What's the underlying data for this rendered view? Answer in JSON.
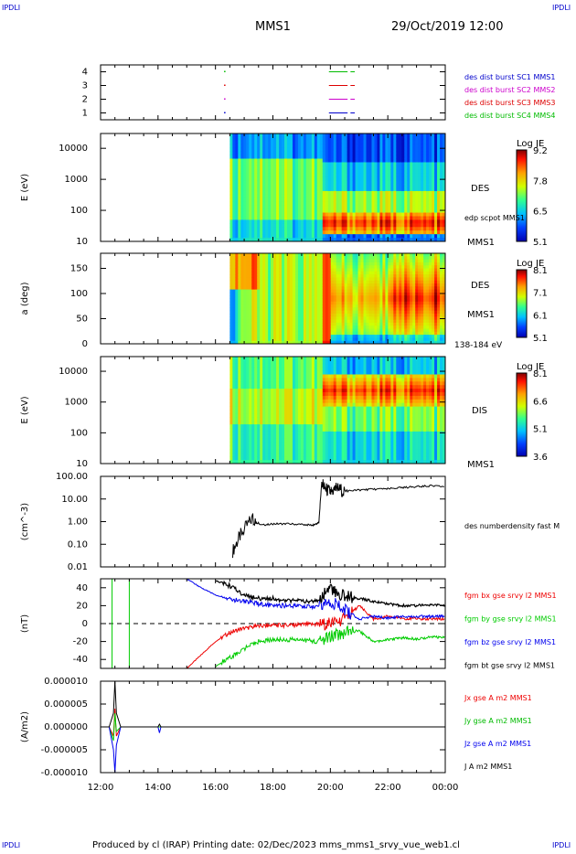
{
  "corner_label": "IPDLI",
  "header": {
    "spacecraft": "MMS1",
    "datetime": "29/Oct/2019 12:00"
  },
  "footer": {
    "text": "Produced by cl (IRAP)   Printing date: 02/Dec/2023   mms_mms1_srvy_vue_web1.cl"
  },
  "time_axis": {
    "ticks": [
      "12:00",
      "14:00",
      "16:00",
      "18:00",
      "20:00",
      "22:00",
      "00:00"
    ]
  },
  "colors": {
    "blue": "#0000ee",
    "magenta": "#dd00dd",
    "red": "#ee0000",
    "green": "#00cc00",
    "black": "#000000"
  },
  "panels": {
    "coverage": {
      "yticks": [
        "4",
        "3",
        "2",
        "1"
      ],
      "legend": [
        {
          "text": "des dist burst SC1 MMS1",
          "color": "#0000cc"
        },
        {
          "text": "des dist burst SC2 MMS2",
          "color": "#cc00cc"
        },
        {
          "text": "des dist burst SC3 MMS3",
          "color": "#dd0000"
        },
        {
          "text": "des dist burst SC4 MMS4",
          "color": "#00bb00"
        }
      ]
    },
    "des_energy": {
      "ylabel": "E (eV)",
      "yticks": [
        "10000",
        "1000",
        "100",
        "10"
      ],
      "instrument": "DES",
      "spacecraft": "MMS1",
      "overlay": "edp scpot MMS1",
      "colorbar": {
        "title": "Log JE",
        "ticks": [
          "9.2",
          "7.8",
          "6.5",
          "5.1"
        ]
      }
    },
    "des_pitch": {
      "ylabel": "a (deg)",
      "yticks": [
        "150",
        "100",
        "50",
        "0"
      ],
      "instrument": "DES",
      "spacecraft": "MMS1",
      "energy_range": "138-184 eV",
      "colorbar": {
        "title": "Log JE",
        "ticks": [
          "8.1",
          "7.1",
          "6.1",
          "5.1"
        ]
      }
    },
    "dis_energy": {
      "ylabel": "E (eV)",
      "yticks": [
        "10000",
        "1000",
        "100",
        "10"
      ],
      "instrument": "DIS",
      "spacecraft": "MMS1",
      "colorbar": {
        "title": "Log JE",
        "ticks": [
          "8.1",
          "6.6",
          "5.1",
          "3.6"
        ]
      }
    },
    "density": {
      "ylabel": "(cm^-3)",
      "yticks": [
        "100.00",
        "10.00",
        "1.00",
        "0.10",
        "0.01"
      ],
      "legend": "des numberdensity fast M"
    },
    "bfield": {
      "ylabel": "(nT)",
      "yticks": [
        "40",
        "20",
        "0",
        "-20",
        "-40"
      ],
      "legend": [
        {
          "text": "fgm bx gse srvy l2 MMS1",
          "color": "#ee0000"
        },
        {
          "text": "fgm by gse srvy l2 MMS1",
          "color": "#00cc00"
        },
        {
          "text": "fgm bz gse srvy l2 MMS1",
          "color": "#0000ee"
        },
        {
          "text": "fgm bt gse srvy l2 MMS1",
          "color": "#000000"
        }
      ]
    },
    "current": {
      "ylabel": "(A/m2)",
      "yticks": [
        "0.000010",
        "0.000005",
        "0.000000",
        "-0.000005",
        "-0.000010"
      ],
      "legend": [
        {
          "text": "Jx gse A m2 MMS1",
          "color": "#ee0000"
        },
        {
          "text": "Jy gse A m2 MMS1",
          "color": "#00bb00"
        },
        {
          "text": "Jz gse A m2 MMS1",
          "color": "#0000ee"
        },
        {
          "text": "J A m2 MMS1",
          "color": "#000000"
        }
      ]
    }
  },
  "chart_data": [
    {
      "type": "scatter",
      "x_unit": "UT hours",
      "y_unit": "spacecraft",
      "xlim": [
        12,
        24
      ],
      "ylim": [
        0.5,
        4.5
      ],
      "series": [
        {
          "name": "des dist burst SC4 MMS4",
          "y": 4,
          "segments": [
            [
              19.95,
              20.6
            ],
            [
              20.7,
              20.85
            ]
          ],
          "points": [
            16.3
          ]
        },
        {
          "name": "des dist burst SC3 MMS3",
          "y": 3,
          "segments": [
            [
              19.95,
              20.6
            ],
            [
              20.7,
              20.85
            ]
          ],
          "points": [
            16.3
          ]
        },
        {
          "name": "des dist burst SC2 MMS2",
          "y": 2,
          "segments": [
            [
              19.95,
              20.6
            ],
            [
              20.7,
              20.85
            ]
          ],
          "points": [
            16.3
          ]
        },
        {
          "name": "des dist burst SC1 MMS1",
          "y": 1,
          "segments": [
            [
              19.95,
              20.6
            ],
            [
              20.7,
              20.85
            ]
          ],
          "points": [
            16.3
          ]
        }
      ]
    },
    {
      "type": "heatmap",
      "name": "DES energy spectrogram",
      "y_scale": "log",
      "ylim": [
        10,
        30000
      ],
      "data_start_hour": 16.5,
      "boundary_hour": 19.7,
      "colorbar_range": [
        5.1,
        9.2
      ]
    },
    {
      "type": "heatmap",
      "name": "DES pitch angle",
      "ylim": [
        0,
        180
      ],
      "data_start_hour": 16.5,
      "boundary_hour": 19.7,
      "colorbar_range": [
        5.1,
        8.1
      ]
    },
    {
      "type": "heatmap",
      "name": "DIS energy spectrogram",
      "y_scale": "log",
      "ylim": [
        10,
        30000
      ],
      "data_start_hour": 16.5,
      "boundary_hour": 19.7,
      "colorbar_range": [
        3.6,
        8.1
      ]
    },
    {
      "type": "line",
      "y_scale": "log",
      "ylim": [
        0.01,
        100
      ],
      "x": [
        16.6,
        16.9,
        17.3,
        17.6,
        18.0,
        18.5,
        19.0,
        19.4,
        19.6,
        19.7,
        19.8,
        20.0,
        20.2,
        20.5,
        21.0,
        21.5,
        22.0,
        22.5,
        23.0,
        23.5,
        24.0
      ],
      "series": [
        {
          "name": "des numberdensity fast M",
          "values": [
            0.05,
            0.3,
            1.5,
            0.7,
            0.8,
            0.8,
            0.75,
            0.7,
            0.9,
            60,
            30,
            20,
            30,
            22,
            25,
            27,
            28,
            32,
            35,
            38,
            35
          ]
        }
      ]
    },
    {
      "type": "line",
      "ylim": [
        -50,
        50
      ],
      "x": [
        15.0,
        15.5,
        16.0,
        16.5,
        17.0,
        17.5,
        18.0,
        18.5,
        19.0,
        19.5,
        20.0,
        20.5,
        21.0,
        21.5,
        22.0,
        22.5,
        23.0,
        23.5,
        24.0
      ],
      "series": [
        {
          "name": "fgm bx gse srvy l2 MMS1",
          "values": [
            -50,
            -35,
            -20,
            -10,
            -5,
            -3,
            -2,
            -2,
            -1,
            -1,
            0,
            5,
            20,
            5,
            8,
            6,
            5,
            5,
            5
          ]
        },
        {
          "name": "fgm by gse srvy l2 MMS1",
          "values": [
            null,
            null,
            -48,
            -38,
            -28,
            -20,
            -18,
            -18,
            -18,
            -20,
            -15,
            -10,
            -8,
            -20,
            -18,
            -16,
            -17,
            -15,
            -16
          ]
        },
        {
          "name": "fgm bz gse srvy l2 MMS1",
          "values": [
            50,
            40,
            32,
            27,
            25,
            22,
            20,
            20,
            20,
            18,
            25,
            15,
            5,
            8,
            6,
            8,
            8,
            8,
            8
          ]
        },
        {
          "name": "fgm bt gse srvy l2 MMS1",
          "values": [
            null,
            null,
            48,
            42,
            32,
            28,
            28,
            26,
            25,
            25,
            40,
            30,
            28,
            25,
            22,
            20,
            20,
            21,
            20
          ]
        }
      ]
    },
    {
      "type": "line",
      "ylim": [
        -1e-05,
        1e-05
      ],
      "x": [
        12.0,
        12.3,
        12.45,
        12.5,
        12.55,
        12.7,
        13.0,
        14.0,
        14.05,
        14.1,
        16.0,
        18.0,
        20.0,
        22.0,
        24.0
      ],
      "series": [
        {
          "name": "Jx gse A m2 MMS1",
          "values": [
            0,
            0,
            -2e-06,
            4e-06,
            -2e-06,
            0,
            0,
            0,
            0,
            0,
            0,
            0,
            0,
            0,
            0
          ]
        },
        {
          "name": "Jy gse A m2 MMS1",
          "values": [
            0,
            0,
            -3e-06,
            3e-06,
            -1e-06,
            0,
            0,
            0,
            0,
            0,
            0,
            0,
            0,
            0,
            0
          ]
        },
        {
          "name": "Jz gse A m2 MMS1",
          "values": [
            0,
            0,
            -5e-06,
            -1e-05,
            -4e-06,
            0,
            0,
            0,
            -1.3e-06,
            0,
            0,
            0,
            0,
            0,
            0
          ]
        },
        {
          "name": "J A m2 MMS1",
          "values": [
            0,
            0,
            3e-06,
            1e-05,
            3e-06,
            0,
            0,
            0,
            6e-07,
            0,
            0,
            0,
            0,
            0,
            0
          ]
        }
      ]
    }
  ]
}
